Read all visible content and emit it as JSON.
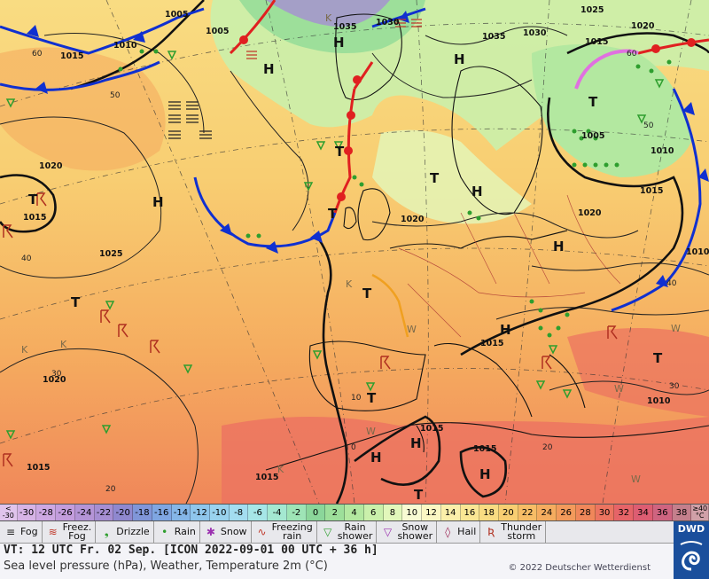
{
  "map": {
    "pressure_labels": [
      {
        "text": "1005"
      },
      {
        "text": "1010"
      },
      {
        "text": "1015"
      },
      {
        "text": "1035"
      },
      {
        "text": "1030"
      },
      {
        "text": "1035"
      },
      {
        "text": "1030"
      },
      {
        "text": "1025"
      },
      {
        "text": "1020"
      },
      {
        "text": "1015"
      },
      {
        "text": "1005"
      },
      {
        "text": "1010"
      },
      {
        "text": "1015"
      },
      {
        "text": "1020"
      },
      {
        "text": "1020"
      },
      {
        "text": "1015"
      },
      {
        "text": "1025"
      },
      {
        "text": "1020"
      },
      {
        "text": "1015"
      },
      {
        "text": "1015"
      },
      {
        "text": "1015"
      },
      {
        "text": "1010"
      },
      {
        "text": "1015"
      },
      {
        "text": "1015"
      },
      {
        "text": "1010"
      },
      {
        "text": "1020"
      },
      {
        "text": "1005"
      }
    ],
    "pressure_centers": [
      {
        "text": "H"
      },
      {
        "text": "H"
      },
      {
        "text": "H"
      },
      {
        "text": "H"
      },
      {
        "text": "H"
      },
      {
        "text": "H"
      },
      {
        "text": "H"
      },
      {
        "text": "H"
      },
      {
        "text": "H"
      },
      {
        "text": "H"
      },
      {
        "text": "T"
      },
      {
        "text": "T"
      },
      {
        "text": "T"
      },
      {
        "text": "T"
      },
      {
        "text": "T"
      },
      {
        "text": "T"
      },
      {
        "text": "T"
      },
      {
        "text": "T"
      },
      {
        "text": "T"
      },
      {
        "text": "T"
      }
    ],
    "temp_labels": [
      {
        "text": "60"
      },
      {
        "text": "50"
      },
      {
        "text": "40"
      },
      {
        "text": "30"
      },
      {
        "text": "20"
      },
      {
        "text": "60"
      },
      {
        "text": "50"
      },
      {
        "text": "40"
      },
      {
        "text": "30"
      },
      {
        "text": "10"
      },
      {
        "text": "0"
      },
      {
        "text": "20"
      }
    ],
    "small_labels": [
      {
        "text": "K"
      },
      {
        "text": "K"
      },
      {
        "text": "K"
      },
      {
        "text": "K"
      },
      {
        "text": "K"
      },
      {
        "text": "W"
      },
      {
        "text": "W"
      },
      {
        "text": "W"
      },
      {
        "text": "W"
      },
      {
        "text": "W"
      }
    ]
  },
  "colorbar": {
    "low_end": [
      "<",
      "-30"
    ],
    "high_end": [
      "≥40",
      "°C"
    ],
    "cells": [
      {
        "text": "-30",
        "color": "#d7b4e6"
      },
      {
        "text": "-28",
        "color": "#cda8e2"
      },
      {
        "text": "-26",
        "color": "#c39ddd"
      },
      {
        "text": "-24",
        "color": "#b494d6"
      },
      {
        "text": "-22",
        "color": "#a68ed2"
      },
      {
        "text": "-20",
        "color": "#8f88cf"
      },
      {
        "text": "-18",
        "color": "#8096d9"
      },
      {
        "text": "-16",
        "color": "#7fa6e2"
      },
      {
        "text": "-14",
        "color": "#85b6e8"
      },
      {
        "text": "-12",
        "color": "#8fc6ec"
      },
      {
        "text": "-10",
        "color": "#99d2ee"
      },
      {
        "text": "-8",
        "color": "#a3ddf0"
      },
      {
        "text": "-6",
        "color": "#a6e6e7"
      },
      {
        "text": "-4",
        "color": "#a4e8d1"
      },
      {
        "text": "-2",
        "color": "#9ee4b6"
      },
      {
        "text": "0",
        "color": "#8bd69a"
      },
      {
        "text": "2",
        "color": "#9ddf9a"
      },
      {
        "text": "4",
        "color": "#b3e8a0"
      },
      {
        "text": "6",
        "color": "#caf0ab"
      },
      {
        "text": "8",
        "color": "#e2f7bb"
      },
      {
        "text": "10",
        "color": "#f8fbd3"
      },
      {
        "text": "12",
        "color": "#fbf7c3"
      },
      {
        "text": "14",
        "color": "#fbefaa"
      },
      {
        "text": "16",
        "color": "#fae794"
      },
      {
        "text": "18",
        "color": "#f9dc82"
      },
      {
        "text": "20",
        "color": "#f8ce72"
      },
      {
        "text": "22",
        "color": "#f7bd66"
      },
      {
        "text": "24",
        "color": "#f5ac5f"
      },
      {
        "text": "26",
        "color": "#f39a5b"
      },
      {
        "text": "28",
        "color": "#f0875a"
      },
      {
        "text": "30",
        "color": "#ec7460"
      },
      {
        "text": "32",
        "color": "#e66468"
      },
      {
        "text": "34",
        "color": "#dd5d72"
      },
      {
        "text": "36",
        "color": "#cf6480"
      },
      {
        "text": "38",
        "color": "#c47f8c"
      }
    ]
  },
  "legend": {
    "items": [
      {
        "symbol": "≡",
        "label": "Fog",
        "color": "#222222"
      },
      {
        "symbol": "≋",
        "label": "Freez.\nFog",
        "color": "#c0392b"
      },
      {
        "symbol": "❟",
        "label": "Drizzle",
        "color": "#2e9e2e"
      },
      {
        "symbol": "•",
        "label": "Rain",
        "color": "#2e9e2e"
      },
      {
        "symbol": "✱",
        "label": "Snow",
        "color": "#9b30b0"
      },
      {
        "symbol": "∿",
        "label": "Freezing\nrain",
        "color": "#c0392b"
      },
      {
        "symbol": "▽",
        "label": "Rain\nshower",
        "color": "#2e9e2e"
      },
      {
        "symbol": "▽",
        "label": "Snow\nshower",
        "color": "#9b30b0"
      },
      {
        "symbol": "◊",
        "label": "Hail",
        "color": "#9b2050"
      },
      {
        "symbol": "Ʀ",
        "label": "Thunder\nstorm",
        "color": "#b03020"
      }
    ]
  },
  "info": {
    "vt_line": "VT: 12 UTC Fr.  02 Sep. [ICON 2022-09-01  00 UTC + 36 h]",
    "desc_line": "Sea level pressure (hPa), Weather, Temperature 2m (°C)",
    "copyright": "© 2022 Deutscher Wetterdienst",
    "logo_text": "DWD"
  }
}
